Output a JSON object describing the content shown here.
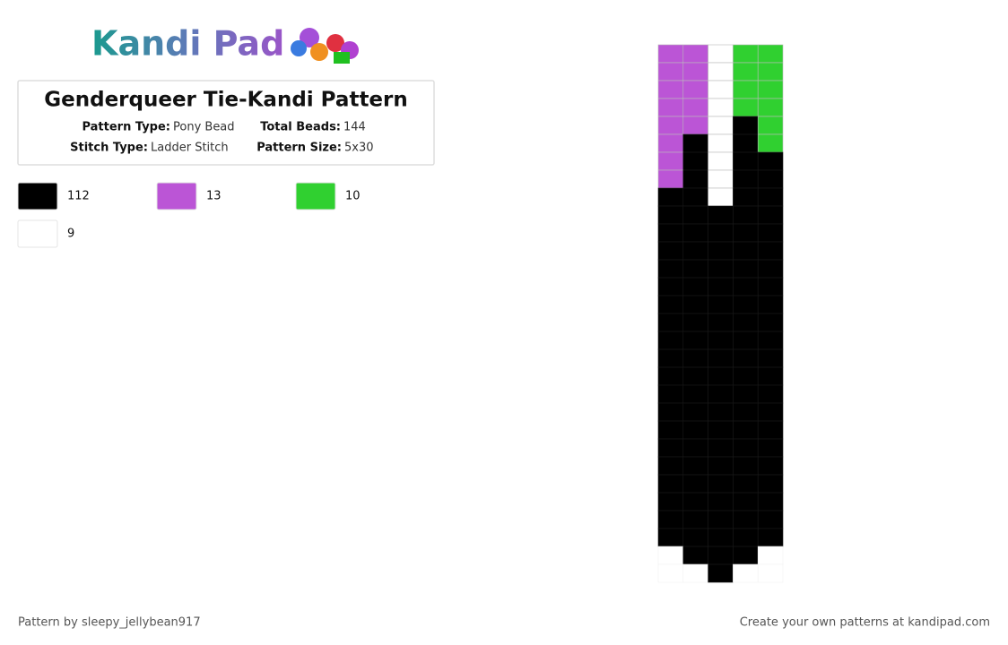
{
  "logo": "Kandi Pad",
  "header": {
    "title": "Genderqueer Tie-Kandi Pattern",
    "fields": [
      {
        "label": "Pattern Type:",
        "value": "Pony Bead"
      },
      {
        "label": "Total Beads:",
        "value": "144"
      },
      {
        "label": "Stitch Type:",
        "value": "Ladder Stitch"
      },
      {
        "label": "Pattern Size:",
        "value": "5x30"
      }
    ]
  },
  "palette": [
    {
      "color": "#000000",
      "count": 112
    },
    {
      "color": "#bb55d6",
      "count": 13
    },
    {
      "color": "#30d030",
      "count": 10
    },
    {
      "color": "#ffffff",
      "count": 9
    }
  ],
  "grid": [
    [
      1,
      1,
      3,
      2,
      2
    ],
    [
      1,
      1,
      3,
      2,
      2
    ],
    [
      1,
      1,
      3,
      2,
      2
    ],
    [
      1,
      1,
      3,
      2,
      2
    ],
    [
      1,
      1,
      3,
      0,
      2
    ],
    [
      1,
      0,
      3,
      0,
      2
    ],
    [
      1,
      0,
      3,
      0,
      0
    ],
    [
      1,
      0,
      3,
      0,
      0
    ],
    [
      0,
      0,
      3,
      0,
      0
    ],
    [
      0,
      0,
      0,
      0,
      0
    ],
    [
      0,
      0,
      0,
      0,
      0
    ],
    [
      0,
      0,
      0,
      0,
      0
    ],
    [
      0,
      0,
      0,
      0,
      0
    ],
    [
      0,
      0,
      0,
      0,
      0
    ],
    [
      0,
      0,
      0,
      0,
      0
    ],
    [
      0,
      0,
      0,
      0,
      0
    ],
    [
      0,
      0,
      0,
      0,
      0
    ],
    [
      0,
      0,
      0,
      0,
      0
    ],
    [
      0,
      0,
      0,
      0,
      0
    ],
    [
      0,
      0,
      0,
      0,
      0
    ],
    [
      0,
      0,
      0,
      0,
      0
    ],
    [
      0,
      0,
      0,
      0,
      0
    ],
    [
      0,
      0,
      0,
      0,
      0
    ],
    [
      0,
      0,
      0,
      0,
      0
    ],
    [
      0,
      0,
      0,
      0,
      0
    ],
    [
      0,
      0,
      0,
      0,
      0
    ],
    [
      0,
      0,
      0,
      0,
      0
    ],
    [
      0,
      0,
      0,
      0,
      0
    ],
    [
      null,
      0,
      0,
      0,
      null
    ],
    [
      null,
      null,
      0,
      null,
      null
    ]
  ],
  "footer": {
    "author": "Pattern by sleepy_jellybean917",
    "site": "Create your own patterns at kandipad.com"
  }
}
